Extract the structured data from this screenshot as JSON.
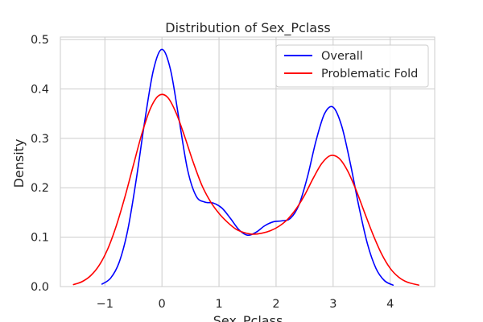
{
  "chart_data": {
    "type": "line",
    "title": "Distribution of Sex_Pclass",
    "xlabel": "Sex_Pclass",
    "ylabel": "Density",
    "xlim": [
      -1.78,
      4.78
    ],
    "ylim": [
      0.0,
      0.505
    ],
    "xticks": [
      -1,
      0,
      1,
      2,
      3,
      4
    ],
    "xtick_labels": [
      "−1",
      "0",
      "1",
      "2",
      "3",
      "4"
    ],
    "yticks": [
      0.0,
      0.1,
      0.2,
      0.3,
      0.4,
      0.5
    ],
    "ytick_labels": [
      "0.0",
      "0.1",
      "0.2",
      "0.3",
      "0.4",
      "0.5"
    ],
    "grid": true,
    "legend_position": "top-right",
    "series": [
      {
        "name": "Overall",
        "color": "#0000ff",
        "x": [
          -1.05,
          -0.9,
          -0.75,
          -0.6,
          -0.45,
          -0.3,
          -0.15,
          0.0,
          0.15,
          0.3,
          0.45,
          0.6,
          0.75,
          0.9,
          1.05,
          1.2,
          1.35,
          1.5,
          1.65,
          1.8,
          1.95,
          2.1,
          2.25,
          2.4,
          2.55,
          2.7,
          2.85,
          3.0,
          3.15,
          3.3,
          3.45,
          3.6,
          3.75,
          3.9,
          4.05
        ],
        "y": [
          0.005,
          0.017,
          0.049,
          0.114,
          0.217,
          0.336,
          0.438,
          0.48,
          0.439,
          0.338,
          0.236,
          0.183,
          0.171,
          0.169,
          0.159,
          0.138,
          0.115,
          0.104,
          0.11,
          0.123,
          0.131,
          0.133,
          0.138,
          0.165,
          0.222,
          0.295,
          0.35,
          0.363,
          0.325,
          0.25,
          0.163,
          0.087,
          0.037,
          0.012,
          0.003
        ]
      },
      {
        "name": "Problematic Fold",
        "color": "#ff0000",
        "x": [
          -1.55,
          -1.4,
          -1.25,
          -1.1,
          -0.95,
          -0.8,
          -0.65,
          -0.5,
          -0.35,
          -0.2,
          -0.05,
          0.1,
          0.25,
          0.4,
          0.55,
          0.7,
          0.85,
          1.0,
          1.15,
          1.3,
          1.45,
          1.6,
          1.75,
          1.9,
          2.05,
          2.2,
          2.35,
          2.5,
          2.65,
          2.8,
          2.95,
          3.1,
          3.25,
          3.4,
          3.55,
          3.7,
          3.85,
          4.0,
          4.15,
          4.3,
          4.5
        ],
        "y": [
          0.004,
          0.01,
          0.022,
          0.043,
          0.076,
          0.123,
          0.181,
          0.246,
          0.31,
          0.361,
          0.387,
          0.383,
          0.351,
          0.303,
          0.251,
          0.205,
          0.172,
          0.148,
          0.13,
          0.116,
          0.109,
          0.106,
          0.108,
          0.113,
          0.122,
          0.136,
          0.157,
          0.185,
          0.219,
          0.249,
          0.265,
          0.26,
          0.235,
          0.196,
          0.15,
          0.105,
          0.066,
          0.037,
          0.019,
          0.009,
          0.003
        ]
      }
    ]
  }
}
